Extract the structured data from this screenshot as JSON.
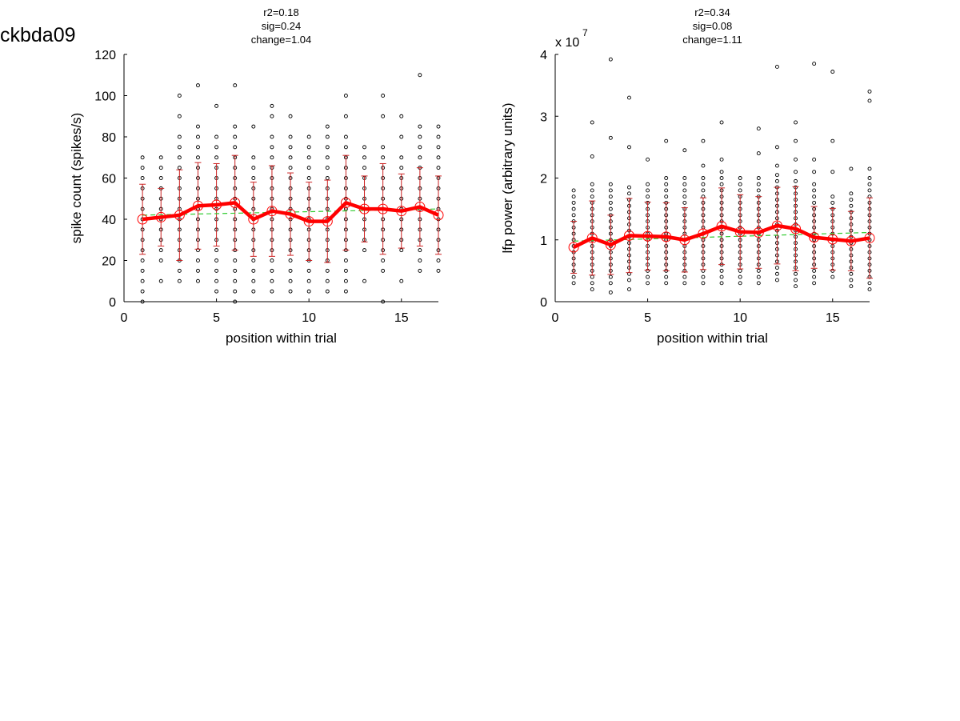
{
  "figure_title": "ckbda09",
  "colors": {
    "scatter": "#000000",
    "mean": "#ff0000",
    "errorbar": "#cc2222",
    "fit": "#33cc33"
  },
  "chart_data": [
    {
      "type": "scatter",
      "stats": [
        "r2=0.18",
        "sig=0.24",
        "change=1.04"
      ],
      "xlabel": "position within trial",
      "ylabel": "spike count (spikes/s)",
      "xlim": [
        0,
        17
      ],
      "ylim": [
        0,
        120
      ],
      "xticks": [
        0,
        5,
        10,
        15
      ],
      "yticks": [
        0,
        20,
        40,
        60,
        80,
        100,
        120
      ],
      "exponent_label": "",
      "exponent_sup": "",
      "x": [
        1,
        2,
        3,
        4,
        5,
        6,
        7,
        8,
        9,
        10,
        11,
        12,
        13,
        14,
        15,
        16,
        17
      ],
      "mean": [
        40,
        41,
        42,
        46.5,
        47,
        48,
        40,
        44,
        42.5,
        39,
        39,
        48,
        45,
        45,
        44,
        46,
        42
      ],
      "sd": [
        17,
        14,
        22,
        21,
        20,
        23,
        18,
        22,
        20,
        19,
        20,
        23,
        16,
        22,
        18,
        19,
        19
      ],
      "fit": {
        "start": 42,
        "end": 45
      },
      "points": [
        [
          0,
          5,
          10,
          15,
          20,
          25,
          30,
          35,
          40,
          45,
          50,
          55,
          60,
          65,
          70
        ],
        [
          10,
          20,
          25,
          30,
          35,
          40,
          45,
          50,
          55,
          60,
          65,
          70
        ],
        [
          10,
          15,
          20,
          25,
          30,
          35,
          40,
          45,
          50,
          55,
          60,
          65,
          70,
          75,
          80,
          90,
          100
        ],
        [
          10,
          15,
          20,
          25,
          30,
          35,
          40,
          45,
          50,
          55,
          60,
          65,
          70,
          75,
          80,
          85,
          105
        ],
        [
          5,
          10,
          15,
          20,
          25,
          30,
          35,
          40,
          45,
          50,
          55,
          60,
          65,
          70,
          75,
          80,
          95
        ],
        [
          0,
          5,
          10,
          15,
          20,
          25,
          30,
          35,
          40,
          45,
          50,
          55,
          60,
          65,
          70,
          75,
          80,
          85,
          105
        ],
        [
          5,
          10,
          15,
          20,
          25,
          30,
          35,
          40,
          45,
          50,
          55,
          60,
          65,
          70,
          85
        ],
        [
          5,
          10,
          15,
          20,
          25,
          30,
          35,
          40,
          45,
          50,
          55,
          60,
          65,
          70,
          75,
          80,
          90,
          95
        ],
        [
          5,
          10,
          15,
          20,
          25,
          30,
          35,
          40,
          45,
          50,
          55,
          60,
          65,
          70,
          75,
          80,
          90
        ],
        [
          5,
          10,
          15,
          20,
          25,
          30,
          35,
          40,
          45,
          50,
          55,
          60,
          65,
          70,
          75,
          80
        ],
        [
          5,
          10,
          15,
          20,
          25,
          30,
          35,
          40,
          45,
          50,
          55,
          60,
          65,
          70,
          75,
          80,
          85
        ],
        [
          5,
          10,
          15,
          20,
          25,
          30,
          35,
          40,
          45,
          50,
          55,
          60,
          65,
          70,
          75,
          80,
          90,
          100
        ],
        [
          10,
          25,
          30,
          35,
          40,
          45,
          50,
          55,
          60,
          65,
          70,
          75
        ],
        [
          0,
          15,
          20,
          25,
          30,
          35,
          40,
          45,
          50,
          55,
          60,
          65,
          70,
          75,
          90,
          100
        ],
        [
          10,
          25,
          30,
          35,
          40,
          45,
          50,
          55,
          60,
          65,
          70,
          80,
          90
        ],
        [
          15,
          20,
          25,
          30,
          35,
          40,
          45,
          50,
          55,
          60,
          65,
          70,
          75,
          80,
          85,
          110
        ],
        [
          15,
          20,
          25,
          30,
          35,
          40,
          45,
          50,
          55,
          60,
          65,
          70,
          75,
          80,
          85
        ]
      ]
    },
    {
      "type": "scatter",
      "stats": [
        "r2=0.34",
        "sig=0.08",
        "change=1.11"
      ],
      "xlabel": "position within trial",
      "ylabel": "lfp power (arbitrary units)",
      "xlim": [
        0,
        17
      ],
      "ylim": [
        0,
        4
      ],
      "xticks": [
        0,
        5,
        10,
        15
      ],
      "yticks": [
        0,
        1,
        2,
        3,
        4
      ],
      "exponent_label": "x 10",
      "exponent_sup": "7",
      "x": [
        1,
        2,
        3,
        4,
        5,
        6,
        7,
        8,
        9,
        10,
        11,
        12,
        13,
        14,
        15,
        16,
        17
      ],
      "mean": [
        0.88,
        1.03,
        0.92,
        1.07,
        1.06,
        1.05,
        1.0,
        1.1,
        1.22,
        1.13,
        1.12,
        1.23,
        1.18,
        1.04,
        1.01,
        0.98,
        1.03
      ],
      "sd": [
        0.42,
        0.6,
        0.48,
        0.6,
        0.55,
        0.55,
        0.52,
        0.58,
        0.62,
        0.6,
        0.58,
        0.62,
        0.68,
        0.5,
        0.5,
        0.48,
        0.65
      ],
      "fit": {
        "start": 0.98,
        "end": 1.12
      },
      "points": [
        [
          0.3,
          0.4,
          0.5,
          0.6,
          0.7,
          0.8,
          0.9,
          1.0,
          1.1,
          1.2,
          1.3,
          1.4,
          1.5,
          1.6,
          1.7,
          1.8
        ],
        [
          0.2,
          0.3,
          0.4,
          0.5,
          0.6,
          0.7,
          0.8,
          0.9,
          1.0,
          1.1,
          1.2,
          1.3,
          1.4,
          1.5,
          1.6,
          1.7,
          1.8,
          1.9,
          2.35,
          2.9
        ],
        [
          0.15,
          0.3,
          0.4,
          0.5,
          0.6,
          0.7,
          0.8,
          0.9,
          1.0,
          1.1,
          1.2,
          1.3,
          1.4,
          1.5,
          1.6,
          1.7,
          1.8,
          1.9,
          2.65,
          3.92
        ],
        [
          0.2,
          0.35,
          0.45,
          0.55,
          0.65,
          0.75,
          0.85,
          0.95,
          1.05,
          1.15,
          1.25,
          1.35,
          1.45,
          1.55,
          1.65,
          1.75,
          1.85,
          2.5,
          3.3
        ],
        [
          0.3,
          0.4,
          0.5,
          0.6,
          0.7,
          0.8,
          0.9,
          1.0,
          1.1,
          1.2,
          1.3,
          1.4,
          1.5,
          1.6,
          1.7,
          1.8,
          1.9,
          2.3
        ],
        [
          0.3,
          0.4,
          0.5,
          0.6,
          0.7,
          0.8,
          0.9,
          1.0,
          1.1,
          1.2,
          1.3,
          1.4,
          1.5,
          1.6,
          1.7,
          1.8,
          1.9,
          2.0,
          2.6
        ],
        [
          0.3,
          0.4,
          0.5,
          0.6,
          0.7,
          0.8,
          0.9,
          1.0,
          1.1,
          1.2,
          1.3,
          1.4,
          1.5,
          1.6,
          1.7,
          1.8,
          1.9,
          2.0,
          2.45
        ],
        [
          0.3,
          0.4,
          0.5,
          0.6,
          0.7,
          0.8,
          0.9,
          1.0,
          1.1,
          1.2,
          1.3,
          1.4,
          1.5,
          1.6,
          1.7,
          1.8,
          1.9,
          2.0,
          2.2,
          2.6
        ],
        [
          0.3,
          0.4,
          0.5,
          0.6,
          0.7,
          0.8,
          0.9,
          1.0,
          1.1,
          1.2,
          1.3,
          1.4,
          1.5,
          1.6,
          1.7,
          1.8,
          1.9,
          2.0,
          2.1,
          2.3,
          2.9
        ],
        [
          0.3,
          0.4,
          0.5,
          0.6,
          0.7,
          0.8,
          0.9,
          1.0,
          1.1,
          1.2,
          1.3,
          1.4,
          1.5,
          1.6,
          1.7,
          1.8,
          1.9,
          2.0
        ],
        [
          0.3,
          0.4,
          0.5,
          0.6,
          0.7,
          0.8,
          0.9,
          1.0,
          1.1,
          1.2,
          1.3,
          1.4,
          1.5,
          1.6,
          1.7,
          1.8,
          1.9,
          2.0,
          2.4,
          2.8
        ],
        [
          0.35,
          0.45,
          0.55,
          0.65,
          0.75,
          0.85,
          0.95,
          1.05,
          1.15,
          1.25,
          1.35,
          1.45,
          1.55,
          1.65,
          1.75,
          1.85,
          1.95,
          2.05,
          2.2,
          2.5,
          3.8
        ],
        [
          0.25,
          0.35,
          0.45,
          0.55,
          0.65,
          0.75,
          0.85,
          0.95,
          1.05,
          1.15,
          1.25,
          1.35,
          1.45,
          1.55,
          1.65,
          1.75,
          1.85,
          1.95,
          2.1,
          2.3,
          2.6,
          2.9
        ],
        [
          0.3,
          0.4,
          0.5,
          0.6,
          0.7,
          0.8,
          0.9,
          1.0,
          1.1,
          1.2,
          1.3,
          1.4,
          1.5,
          1.6,
          1.7,
          1.8,
          1.9,
          2.1,
          2.3,
          3.85
        ],
        [
          0.4,
          0.5,
          0.6,
          0.7,
          0.8,
          0.9,
          1.0,
          1.1,
          1.2,
          1.3,
          1.4,
          1.5,
          1.6,
          1.7,
          2.1,
          2.6,
          3.72
        ],
        [
          0.25,
          0.35,
          0.45,
          0.55,
          0.65,
          0.75,
          0.85,
          0.95,
          1.05,
          1.15,
          1.25,
          1.35,
          1.45,
          1.55,
          1.65,
          1.75,
          2.15
        ],
        [
          0.2,
          0.3,
          0.4,
          0.5,
          0.6,
          0.7,
          0.8,
          0.9,
          1.0,
          1.1,
          1.2,
          1.3,
          1.4,
          1.5,
          1.6,
          1.7,
          1.8,
          1.9,
          2.0,
          2.15,
          3.25,
          3.4
        ]
      ]
    }
  ]
}
